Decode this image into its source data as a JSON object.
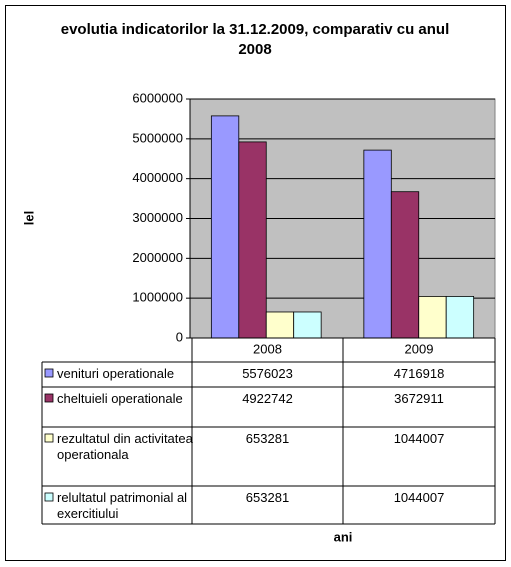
{
  "chart_data": {
    "type": "bar",
    "title": "evolutia indicatorilor la 31.12.2009, comparativ cu anul 2008",
    "y_label": "lel",
    "x_label": "ani",
    "categories": [
      "2008",
      "2009"
    ],
    "series": [
      {
        "name": "venituri operationale",
        "color": "#9999ff",
        "values": [
          5576023,
          4716918
        ]
      },
      {
        "name": "cheltuieli operationale",
        "color": "#993366",
        "values": [
          4922742,
          3672911
        ]
      },
      {
        "name": "rezultatul din activitatea operationala",
        "color": "#ffffcc",
        "values": [
          653281,
          1044007
        ]
      },
      {
        "name": "relultatul patrimonial al exercitiului",
        "color": "#ccffff",
        "values": [
          653281,
          1044007
        ]
      }
    ],
    "ylim": [
      0,
      6000000
    ],
    "yticks": [
      0,
      1000000,
      2000000,
      3000000,
      4000000,
      5000000,
      6000000
    ],
    "grid": true,
    "plot_background": "#c0c0c0"
  }
}
